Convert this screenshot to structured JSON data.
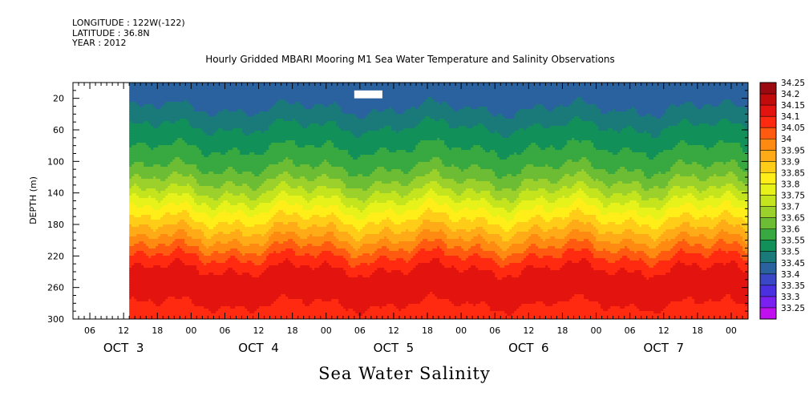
{
  "header": {
    "longitude": "LONGITUDE : 122W(-122)",
    "latitude": "LATITUDE : 36.8N",
    "year": "YEAR : 2012"
  },
  "chart_data": {
    "type": "heatmap",
    "title": "Hourly Gridded MBARI Mooring M1 Sea Water Temperature and Salinity Observations",
    "bottom_title": "Sea Water Salinity",
    "ylabel": "DEPTH (m)",
    "y_reversed": true,
    "ylim": [
      300,
      0
    ],
    "y_ticks": [
      20,
      60,
      100,
      140,
      180,
      220,
      260,
      300
    ],
    "x_hour_ticks": [
      "06",
      "12",
      "18",
      "00",
      "06",
      "12",
      "18",
      "00",
      "06",
      "12",
      "18",
      "00",
      "06",
      "12",
      "18",
      "00",
      "06",
      "12",
      "18",
      "00"
    ],
    "x_day_labels": [
      "OCT  3",
      "OCT  4",
      "OCT  5",
      "OCT  6",
      "OCT  7"
    ],
    "x_range_hours": [
      "2012-10-03T03:00",
      "2012-10-08T03:00"
    ],
    "data_start": "2012-10-03T13:00",
    "missing_blocks": [
      {
        "from": "2012-10-05T05:00",
        "to": "2012-10-05T10:00",
        "depth_from": 10,
        "depth_to": 20
      }
    ],
    "colorbar": {
      "levels": [
        "34.25",
        "34.2",
        "34.15",
        "34.1",
        "34.05",
        "34",
        "33.95",
        "33.9",
        "33.85",
        "33.8",
        "33.75",
        "33.7",
        "33.65",
        "33.6",
        "33.55",
        "33.5",
        "33.45",
        "33.4",
        "33.35",
        "33.3",
        "33.25"
      ],
      "colors": [
        "#9a0a10",
        "#c20c0c",
        "#e3140f",
        "#ff2a10",
        "#ff5a10",
        "#ff8a12",
        "#ffab18",
        "#ffcc18",
        "#ffee18",
        "#e6f21a",
        "#c4e41e",
        "#9cd02a",
        "#6cbc34",
        "#38a840",
        "#12905a",
        "#1a7a7a",
        "#2a62a0",
        "#3a48c8",
        "#4a30e0",
        "#7a20f0",
        "#c010f0"
      ]
    },
    "depth_profile": [
      {
        "depth": 10,
        "salinity": 33.45
      },
      {
        "depth": 40,
        "salinity": 33.52
      },
      {
        "depth": 70,
        "salinity": 33.58
      },
      {
        "depth": 100,
        "salinity": 33.63
      },
      {
        "depth": 130,
        "salinity": 33.72
      },
      {
        "depth": 160,
        "salinity": 33.85
      },
      {
        "depth": 190,
        "salinity": 33.97
      },
      {
        "depth": 220,
        "salinity": 34.1
      },
      {
        "depth": 250,
        "salinity": 34.2
      },
      {
        "depth": 280,
        "salinity": 34.15
      },
      {
        "depth": 300,
        "salinity": 34.1
      }
    ]
  }
}
